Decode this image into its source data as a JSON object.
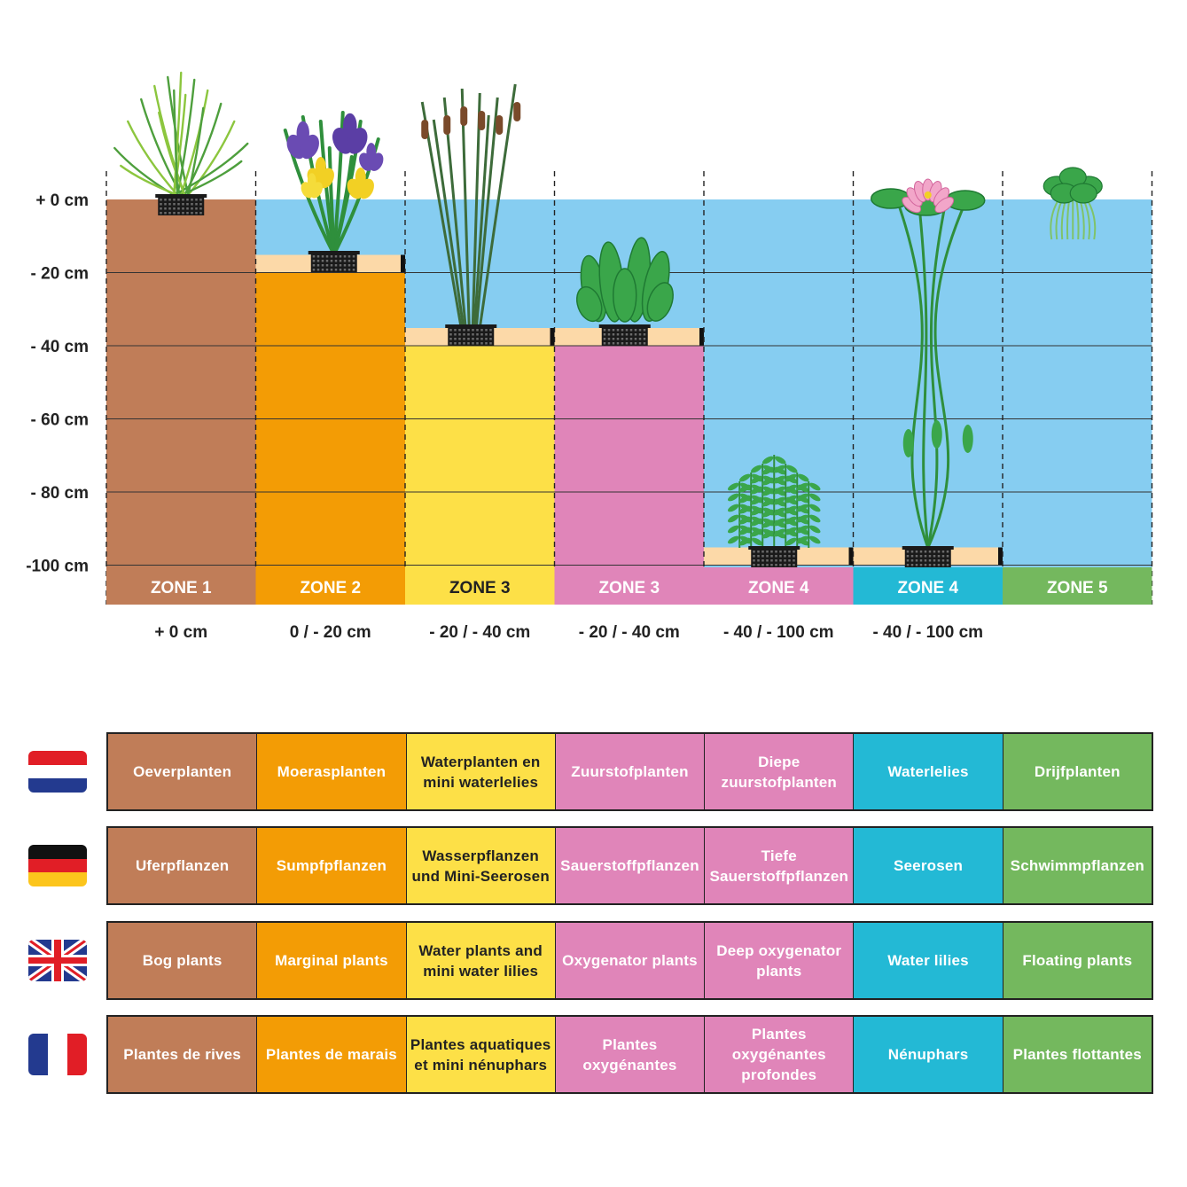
{
  "colors": {
    "water": "#86cdf1",
    "soil": "#c07d58",
    "zone2": "#f39c05",
    "zone3": "#fde047",
    "zone3b": "#e085b9",
    "zone4": "#e085b9",
    "zone4b": "#23b9d5",
    "zone5": "#74b85e",
    "shelf": "#fcd9a8",
    "basket": "#1a1a1a",
    "plant_green": "#3aa64a"
  },
  "depth_axis": {
    "labels": [
      "+ 0 cm",
      "- 20 cm",
      "- 40 cm",
      "- 60 cm",
      "- 80 cm",
      "-100 cm"
    ]
  },
  "zones": [
    {
      "label": "ZONE 1",
      "range": "+ 0 cm",
      "color": "#c07d58",
      "label_color": "#ffffff",
      "plant_icon": "grass-icon"
    },
    {
      "label": "ZONE 2",
      "range": "0 / - 20 cm",
      "color": "#f39c05",
      "label_color": "#ffffff",
      "plant_icon": "iris-icon"
    },
    {
      "label": "ZONE 3",
      "range": "- 20 / - 40 cm",
      "color": "#fde047",
      "label_color": "#222222",
      "plant_icon": "cattail-icon"
    },
    {
      "label": "ZONE 3",
      "range": "- 20 / - 40 cm",
      "color": "#e085b9",
      "label_color": "#ffffff",
      "plant_icon": "oxygenator-icon"
    },
    {
      "label": "ZONE 4",
      "range": "- 40 / - 100 cm",
      "color": "#e085b9",
      "label_color": "#ffffff",
      "plant_icon": "deep-oxygenator-icon"
    },
    {
      "label": "ZONE 4",
      "range": "- 40 / - 100 cm",
      "color": "#23b9d5",
      "label_color": "#ffffff",
      "plant_icon": "water-lily-icon"
    },
    {
      "label": "ZONE 5",
      "range": "",
      "color": "#74b85e",
      "label_color": "#ffffff",
      "plant_icon": "floating-plant-icon"
    }
  ],
  "languages": [
    {
      "flag": "netherlands-flag-icon",
      "cells": [
        "Oeverplanten",
        "Moerasplanten",
        "Waterplanten en mini waterlelies",
        "Zuurstofplanten",
        "Diepe zuurstofplanten",
        "Waterlelies",
        "Drijfplanten"
      ]
    },
    {
      "flag": "germany-flag-icon",
      "cells": [
        "Uferpflanzen",
        "Sumpfpflanzen",
        "Wasserpflanzen und Mini-Seerosen",
        "Sauerstoffpflanzen",
        "Tiefe Sauerstoffpflanzen",
        "Seerosen",
        "Schwimmpflanzen"
      ]
    },
    {
      "flag": "uk-flag-icon",
      "cells": [
        "Bog plants",
        "Marginal plants",
        "Water plants and mini water lilies",
        "Oxygenator plants",
        "Deep oxygenator plants",
        "Water lilies",
        "Floating plants"
      ]
    },
    {
      "flag": "france-flag-icon",
      "cells": [
        "Plantes de rives",
        "Plantes de marais",
        "Plantes aquatiques et mini nénuphars",
        "Plantes oxygénantes",
        "Plantes oxygénantes profondes",
        "Nénuphars",
        "Plantes flottantes"
      ]
    }
  ]
}
